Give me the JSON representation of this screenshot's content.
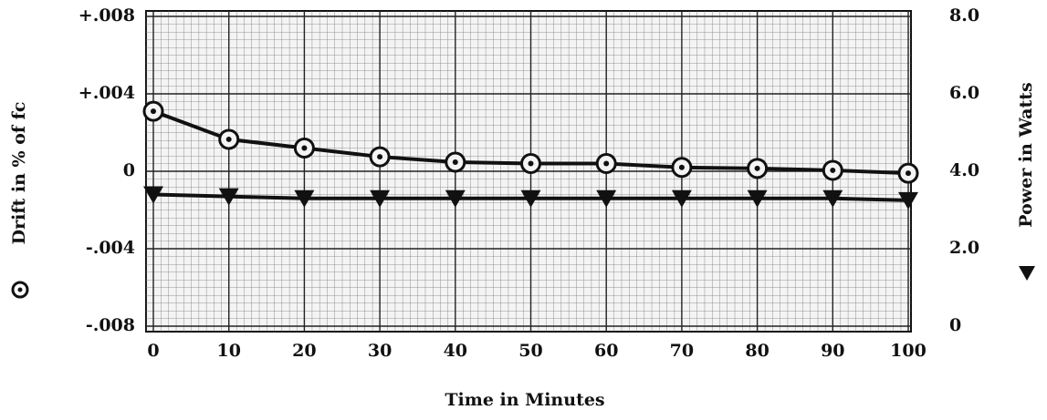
{
  "chart_data": {
    "type": "line",
    "xlabel": "Time in Minutes",
    "ylabel": "Drift in % of fc",
    "y2label": "Power in Watts",
    "x": [
      0,
      10,
      20,
      30,
      40,
      50,
      60,
      70,
      80,
      90,
      100
    ],
    "xlim": [
      0,
      100
    ],
    "xticks": [
      0,
      10,
      20,
      30,
      40,
      50,
      60,
      70,
      80,
      90,
      100
    ],
    "ylim": [
      -0.008,
      0.008
    ],
    "yticks": [
      {
        "value": 0.008,
        "label": "+.008"
      },
      {
        "value": 0.004,
        "label": "+.004"
      },
      0,
      {
        "value": -0.004,
        "label": "-.004"
      },
      {
        "value": -0.008,
        "label": "-.008"
      }
    ],
    "y2lim": [
      0,
      8
    ],
    "y2ticks": [
      {
        "value": 8,
        "label": "8.0"
      },
      {
        "value": 6,
        "label": "6.0"
      },
      {
        "value": 4,
        "label": "4.0"
      },
      {
        "value": 2,
        "label": "2.0"
      },
      0
    ],
    "grid": true,
    "series": [
      {
        "color": "#111111",
        "marker": "circle",
        "values": [
          0.0031,
          0.00165,
          0.0012,
          0.00075,
          0.00047,
          0.0004,
          0.0004,
          0.0002,
          0.00015,
          5e-05,
          -0.0001
        ]
      },
      {
        "color": "#111111",
        "marker": "triangle",
        "axis": "y2",
        "values": [
          3.4,
          3.35,
          3.3,
          3.3,
          3.3,
          3.3,
          3.3,
          3.3,
          3.3,
          3.3,
          3.25
        ]
      }
    ]
  }
}
